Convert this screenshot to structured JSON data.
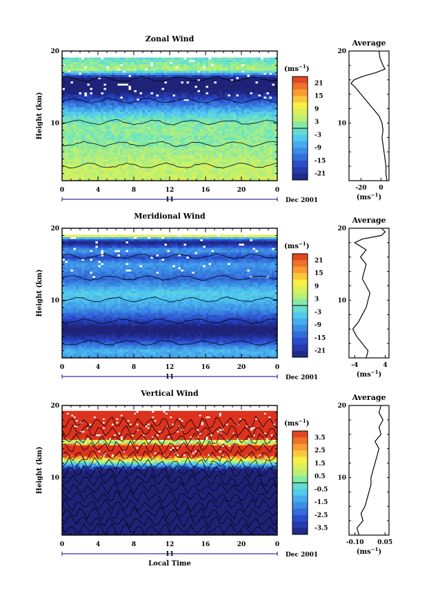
{
  "figure": {
    "date_label": "Dec 2001",
    "day_label": "11",
    "xlabel_bottom": "Local Time",
    "height_label": "Height (km)",
    "unit_label": "(ms⁻¹)"
  },
  "chart_data": [
    {
      "type": "heatmap",
      "title": "Zonal Wind",
      "xlabel": "",
      "ylabel": "Height (km)",
      "x_ticks": [
        "0",
        "4",
        "8",
        "12",
        "16",
        "20",
        "0"
      ],
      "y_ticks": [
        "20",
        "10"
      ],
      "xlim": [
        0,
        24
      ],
      "ylim": [
        2,
        20
      ],
      "colorbar": {
        "unit": "(ms⁻¹)",
        "ticks": [
          "21",
          "15",
          "9",
          "3",
          "-3",
          "-9",
          "-15",
          "-21"
        ],
        "range": [
          -24,
          24
        ]
      },
      "average": {
        "title": "Average",
        "xlabel": "(ms⁻¹)",
        "x_ticks": [
          "-20",
          "0"
        ],
        "xlim": [
          -32,
          8
        ],
        "y_ticks": [
          "20",
          "10"
        ],
        "profile": [
          [
            2,
            6
          ],
          [
            3,
            5
          ],
          [
            4,
            5
          ],
          [
            5,
            4
          ],
          [
            6,
            3
          ],
          [
            7,
            2
          ],
          [
            8,
            1
          ],
          [
            9,
            2
          ],
          [
            10,
            1
          ],
          [
            11,
            -2
          ],
          [
            12,
            -8
          ],
          [
            13,
            -14
          ],
          [
            14,
            -20
          ],
          [
            15,
            -26
          ],
          [
            15.5,
            -30
          ],
          [
            16,
            -27
          ],
          [
            16.5,
            -18
          ],
          [
            17,
            -5
          ],
          [
            17.5,
            4
          ],
          [
            18,
            2
          ],
          [
            19,
            -1
          ],
          [
            20,
            -2
          ]
        ]
      }
    },
    {
      "type": "heatmap",
      "title": "Meridional Wind",
      "xlabel": "",
      "ylabel": "Height (km)",
      "x_ticks": [
        "0",
        "4",
        "8",
        "12",
        "16",
        "20",
        "0"
      ],
      "y_ticks": [
        "20",
        "10"
      ],
      "xlim": [
        0,
        24
      ],
      "ylim": [
        2,
        20
      ],
      "colorbar": {
        "unit": "(ms⁻¹)",
        "ticks": [
          "21",
          "15",
          "9",
          "3",
          "-3",
          "-9",
          "-15",
          "-21"
        ],
        "range": [
          -24,
          24
        ]
      },
      "average": {
        "title": "Average",
        "xlabel": "(ms⁻¹)",
        "x_ticks": [
          "-4",
          "4"
        ],
        "xlim": [
          -5.5,
          5
        ],
        "y_ticks": [
          "20",
          "10"
        ],
        "profile": [
          [
            2,
            -1
          ],
          [
            3,
            -0.5
          ],
          [
            4,
            -2
          ],
          [
            5,
            -3.5
          ],
          [
            6,
            -4.5
          ],
          [
            7,
            -3
          ],
          [
            8,
            -2
          ],
          [
            9,
            -1
          ],
          [
            10,
            -0.5
          ],
          [
            11,
            0
          ],
          [
            12,
            -1
          ],
          [
            13,
            -2
          ],
          [
            14,
            -1.5
          ],
          [
            15,
            -1
          ],
          [
            16,
            -2.5
          ],
          [
            17,
            -1
          ],
          [
            18,
            -4
          ],
          [
            18.5,
            -2
          ],
          [
            19,
            3
          ],
          [
            19.5,
            4
          ],
          [
            20,
            3
          ]
        ]
      }
    },
    {
      "type": "heatmap",
      "title": "Vertical Wind",
      "xlabel": "Local Time",
      "ylabel": "Height (km)",
      "x_ticks": [
        "0",
        "4",
        "8",
        "12",
        "16",
        "20",
        "0"
      ],
      "y_ticks": [
        "20",
        "10"
      ],
      "xlim": [
        0,
        24
      ],
      "ylim": [
        2,
        20
      ],
      "colorbar": {
        "unit": "(ms⁻¹)",
        "ticks": [
          "3.5",
          "2.5",
          "1.5",
          "0.5",
          "-0.5",
          "-1.5",
          "-2.5",
          "-3.5"
        ],
        "range": [
          -4,
          4
        ]
      },
      "average": {
        "title": "Average",
        "xlabel": "(ms⁻¹)",
        "x_ticks": [
          "-0.10",
          "0.05"
        ],
        "xlim": [
          -0.13,
          0.07
        ],
        "y_ticks": [
          "20",
          "10"
        ],
        "profile": [
          [
            2,
            -0.08
          ],
          [
            3,
            -0.09
          ],
          [
            4,
            -0.06
          ],
          [
            5,
            -0.07
          ],
          [
            6,
            -0.05
          ],
          [
            7,
            -0.04
          ],
          [
            8,
            -0.03
          ],
          [
            9,
            -0.02
          ],
          [
            10,
            -0.02
          ],
          [
            11,
            -0.01
          ],
          [
            12,
            0.0
          ],
          [
            13,
            0.01
          ],
          [
            14,
            0.02
          ],
          [
            15,
            0.0
          ],
          [
            16,
            0.03
          ],
          [
            17,
            0.02
          ],
          [
            18,
            0.04
          ],
          [
            19,
            0.02
          ],
          [
            20,
            0.03
          ]
        ]
      }
    }
  ]
}
